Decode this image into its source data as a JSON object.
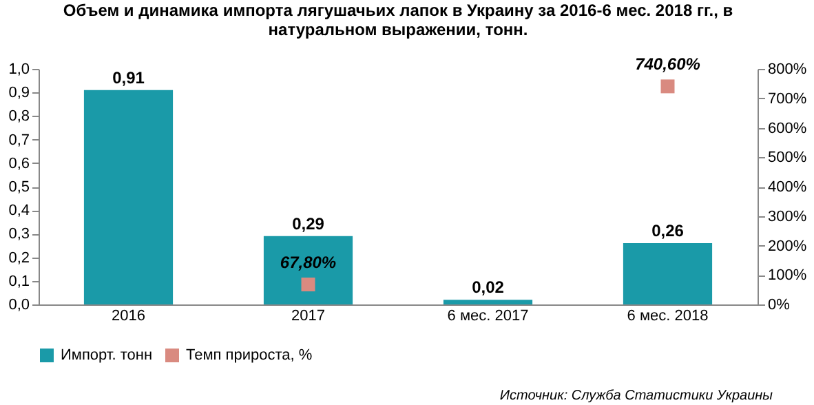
{
  "chart_data": {
    "type": "bar",
    "title": "Объем и динамика импорта лягушачьих лапок в Украину за 2016-6 мес. 2018 гг., в натуральном выражении, тонн.",
    "categories": [
      "2016",
      "2017",
      "6 мес. 2017",
      "6 мес. 2018"
    ],
    "series": [
      {
        "name": "Импорт. тонн",
        "color": "#1a9aa8",
        "values": [
          0.91,
          0.29,
          0.02,
          0.26
        ],
        "value_labels": [
          "0,91",
          "0,29",
          "0,02",
          "0,26"
        ]
      },
      {
        "name": "Темп прироста, %",
        "type": "scatter",
        "axis": "y2",
        "marker": "square",
        "color": "#d98a80",
        "values": [
          null,
          67.8,
          null,
          740.6
        ],
        "value_labels": [
          null,
          "67,80%",
          null,
          "740,60%"
        ]
      }
    ],
    "ylim": [
      0,
      1
    ],
    "yticks": [
      {
        "value": 0,
        "label": "0,0"
      },
      {
        "value": 0.1,
        "label": "0,1"
      },
      {
        "value": 0.2,
        "label": "0,2"
      },
      {
        "value": 0.3,
        "label": "0,3"
      },
      {
        "value": 0.4,
        "label": "0,4"
      },
      {
        "value": 0.5,
        "label": "0,5"
      },
      {
        "value": 0.6,
        "label": "0,6"
      },
      {
        "value": 0.7,
        "label": "0,7"
      },
      {
        "value": 0.8,
        "label": "0,8"
      },
      {
        "value": 0.9,
        "label": "0,9"
      },
      {
        "value": 1,
        "label": "1,0"
      }
    ],
    "y2lim": [
      0,
      800
    ],
    "y2ticks": [
      {
        "value": 0,
        "label": "0%"
      },
      {
        "value": 100,
        "label": "100%"
      },
      {
        "value": 200,
        "label": "200%"
      },
      {
        "value": 300,
        "label": "300%"
      },
      {
        "value": 400,
        "label": "400%"
      },
      {
        "value": 500,
        "label": "500%"
      },
      {
        "value": 600,
        "label": "600%"
      },
      {
        "value": 700,
        "label": "700%"
      },
      {
        "value": 800,
        "label": "800%"
      }
    ],
    "grid": false,
    "legend": "bottom",
    "annotations": [
      "Источник: Служба Статистики Украины"
    ]
  }
}
